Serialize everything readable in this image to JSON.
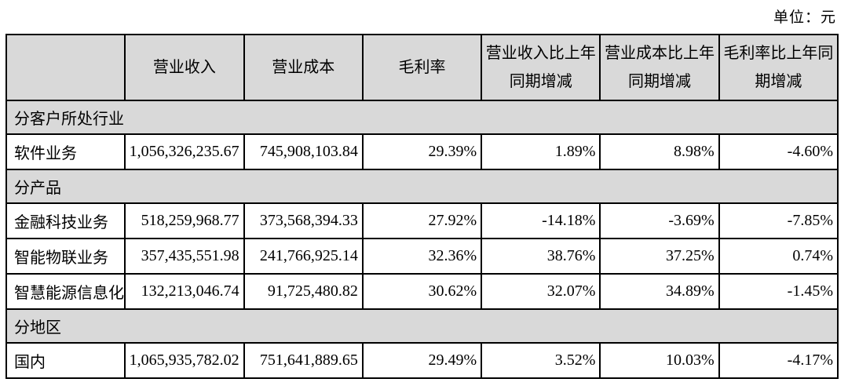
{
  "page": {
    "unit_label": "单位：元"
  },
  "colors": {
    "header_bg": "#d9d9d9",
    "section_bg": "#d9d9d9",
    "border": "#000000",
    "page_bg": "#ffffff"
  },
  "table": {
    "headers": [
      "",
      "营业收入",
      "营业成本",
      "毛利率",
      "营业收入比上年\n同期增减",
      "营业成本比上年\n同期增减",
      "毛利率比上年同\n期增减"
    ],
    "rows": [
      {
        "type": "section",
        "label": "分客户所处行业"
      },
      {
        "type": "data",
        "label": "软件业务",
        "values": [
          "1,056,326,235.67",
          "745,908,103.84",
          "29.39%",
          "1.89%",
          "8.98%",
          "-4.60%"
        ]
      },
      {
        "type": "section",
        "label": "分产品"
      },
      {
        "type": "data",
        "label": "金融科技业务",
        "values": [
          "518,259,968.77",
          "373,568,394.33",
          "27.92%",
          "-14.18%",
          "-3.69%",
          "-7.85%"
        ]
      },
      {
        "type": "data",
        "label": "智能物联业务",
        "values": [
          "357,435,551.98",
          "241,766,925.14",
          "32.36%",
          "38.76%",
          "37.25%",
          "0.74%"
        ]
      },
      {
        "type": "data",
        "label": "智慧能源信息化",
        "values": [
          "132,213,046.74",
          "91,725,480.82",
          "30.62%",
          "32.07%",
          "34.89%",
          "-1.45%"
        ]
      },
      {
        "type": "section",
        "label": "分地区"
      },
      {
        "type": "data",
        "label": "国内",
        "values": [
          "1,065,935,782.02",
          "751,641,889.65",
          "29.49%",
          "3.52%",
          "10.03%",
          "-4.17%"
        ]
      }
    ]
  }
}
